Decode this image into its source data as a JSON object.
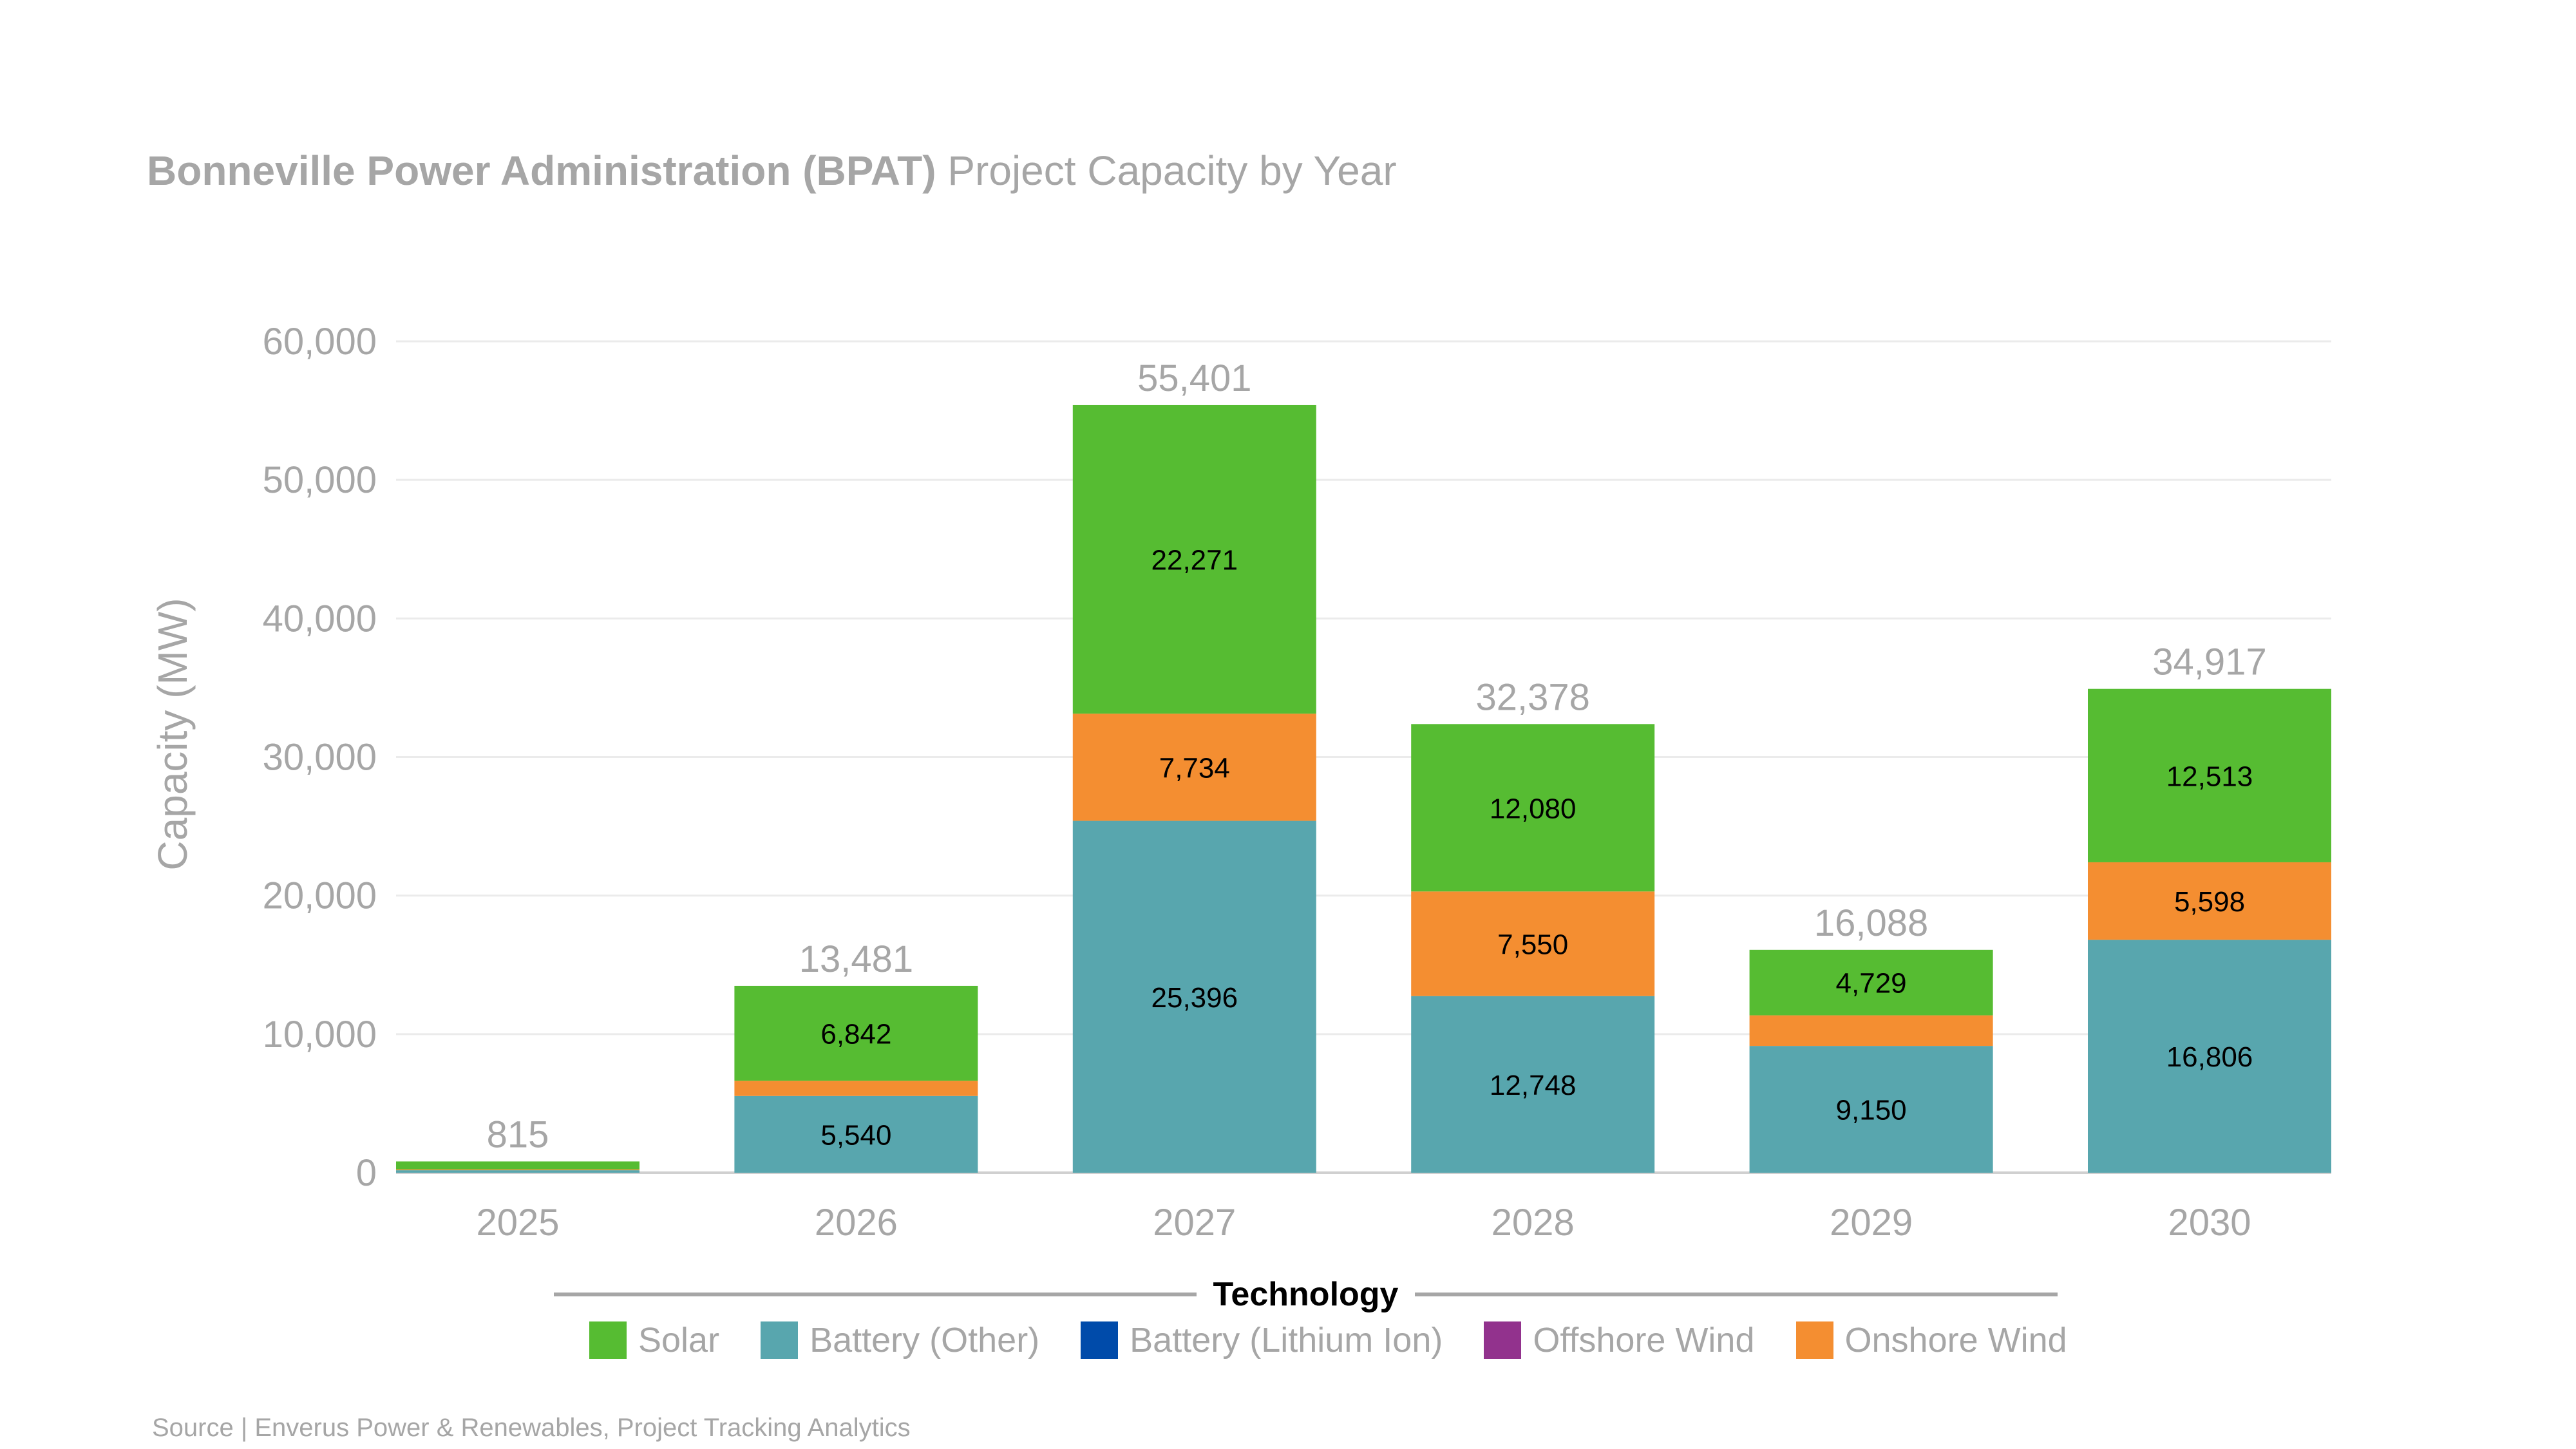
{
  "title": {
    "bold": "Bonneville Power Administration (BPAT)",
    "regular": "Project Capacity by Year"
  },
  "source": "Source | Enverus Power & Renewables, Project Tracking Analytics",
  "legend": {
    "title": "Technology",
    "items": [
      {
        "name": "Solar",
        "color": "#56bc32"
      },
      {
        "name": "Battery (Other)",
        "color": "#58a6ae"
      },
      {
        "name": "Battery (Lithium Ion)",
        "color": "#004baa"
      },
      {
        "name": "Offshore Wind",
        "color": "#92328d"
      },
      {
        "name": "Onshore Wind",
        "color": "#f48e31"
      }
    ]
  },
  "chart_data": {
    "type": "bar",
    "stacked": true,
    "title": "Bonneville Power Administration (BPAT) Project Capacity by Year",
    "xlabel": "",
    "ylabel": "Capacity (MW)",
    "ylim": [
      0,
      60000
    ],
    "yticks": [
      0,
      10000,
      20000,
      30000,
      40000,
      50000,
      60000
    ],
    "ytick_labels": [
      "0",
      "10,000",
      "20,000",
      "30,000",
      "40,000",
      "50,000",
      "60,000"
    ],
    "grid": true,
    "legend_position": "bottom",
    "categories": [
      "2025",
      "2026",
      "2027",
      "2028",
      "2029",
      "2030"
    ],
    "series": [
      {
        "name": "Battery (Other)",
        "color": "#58a6ae",
        "values": [
          180,
          5540,
          25396,
          12748,
          9150,
          16806
        ],
        "labels": [
          "",
          "5,540",
          "25,396",
          "12,748",
          "9,150",
          "16,806"
        ]
      },
      {
        "name": "Battery (Lithium Ion)",
        "color": "#004baa",
        "values": [
          0,
          0,
          0,
          0,
          0,
          0
        ],
        "labels": [
          "",
          "",
          "",
          "",
          "",
          ""
        ]
      },
      {
        "name": "Offshore Wind",
        "color": "#92328d",
        "values": [
          0,
          0,
          0,
          0,
          0,
          0
        ],
        "labels": [
          "",
          "",
          "",
          "",
          "",
          ""
        ]
      },
      {
        "name": "Onshore Wind",
        "color": "#f48e31",
        "values": [
          60,
          1099,
          7734,
          7550,
          2209,
          5598
        ],
        "labels": [
          "",
          "",
          "7,734",
          "7,550",
          "",
          "5,598"
        ]
      },
      {
        "name": "Solar",
        "color": "#56bc32",
        "values": [
          575,
          6842,
          22271,
          12080,
          4729,
          12513
        ],
        "labels": [
          "",
          "6,842",
          "22,271",
          "12,080",
          "4,729",
          "12,513"
        ]
      }
    ],
    "totals": [
      815,
      13481,
      55401,
      32378,
      16088,
      34917
    ],
    "total_labels": [
      "815",
      "13,481",
      "55,401",
      "32,378",
      "16,088",
      "34,917"
    ]
  }
}
